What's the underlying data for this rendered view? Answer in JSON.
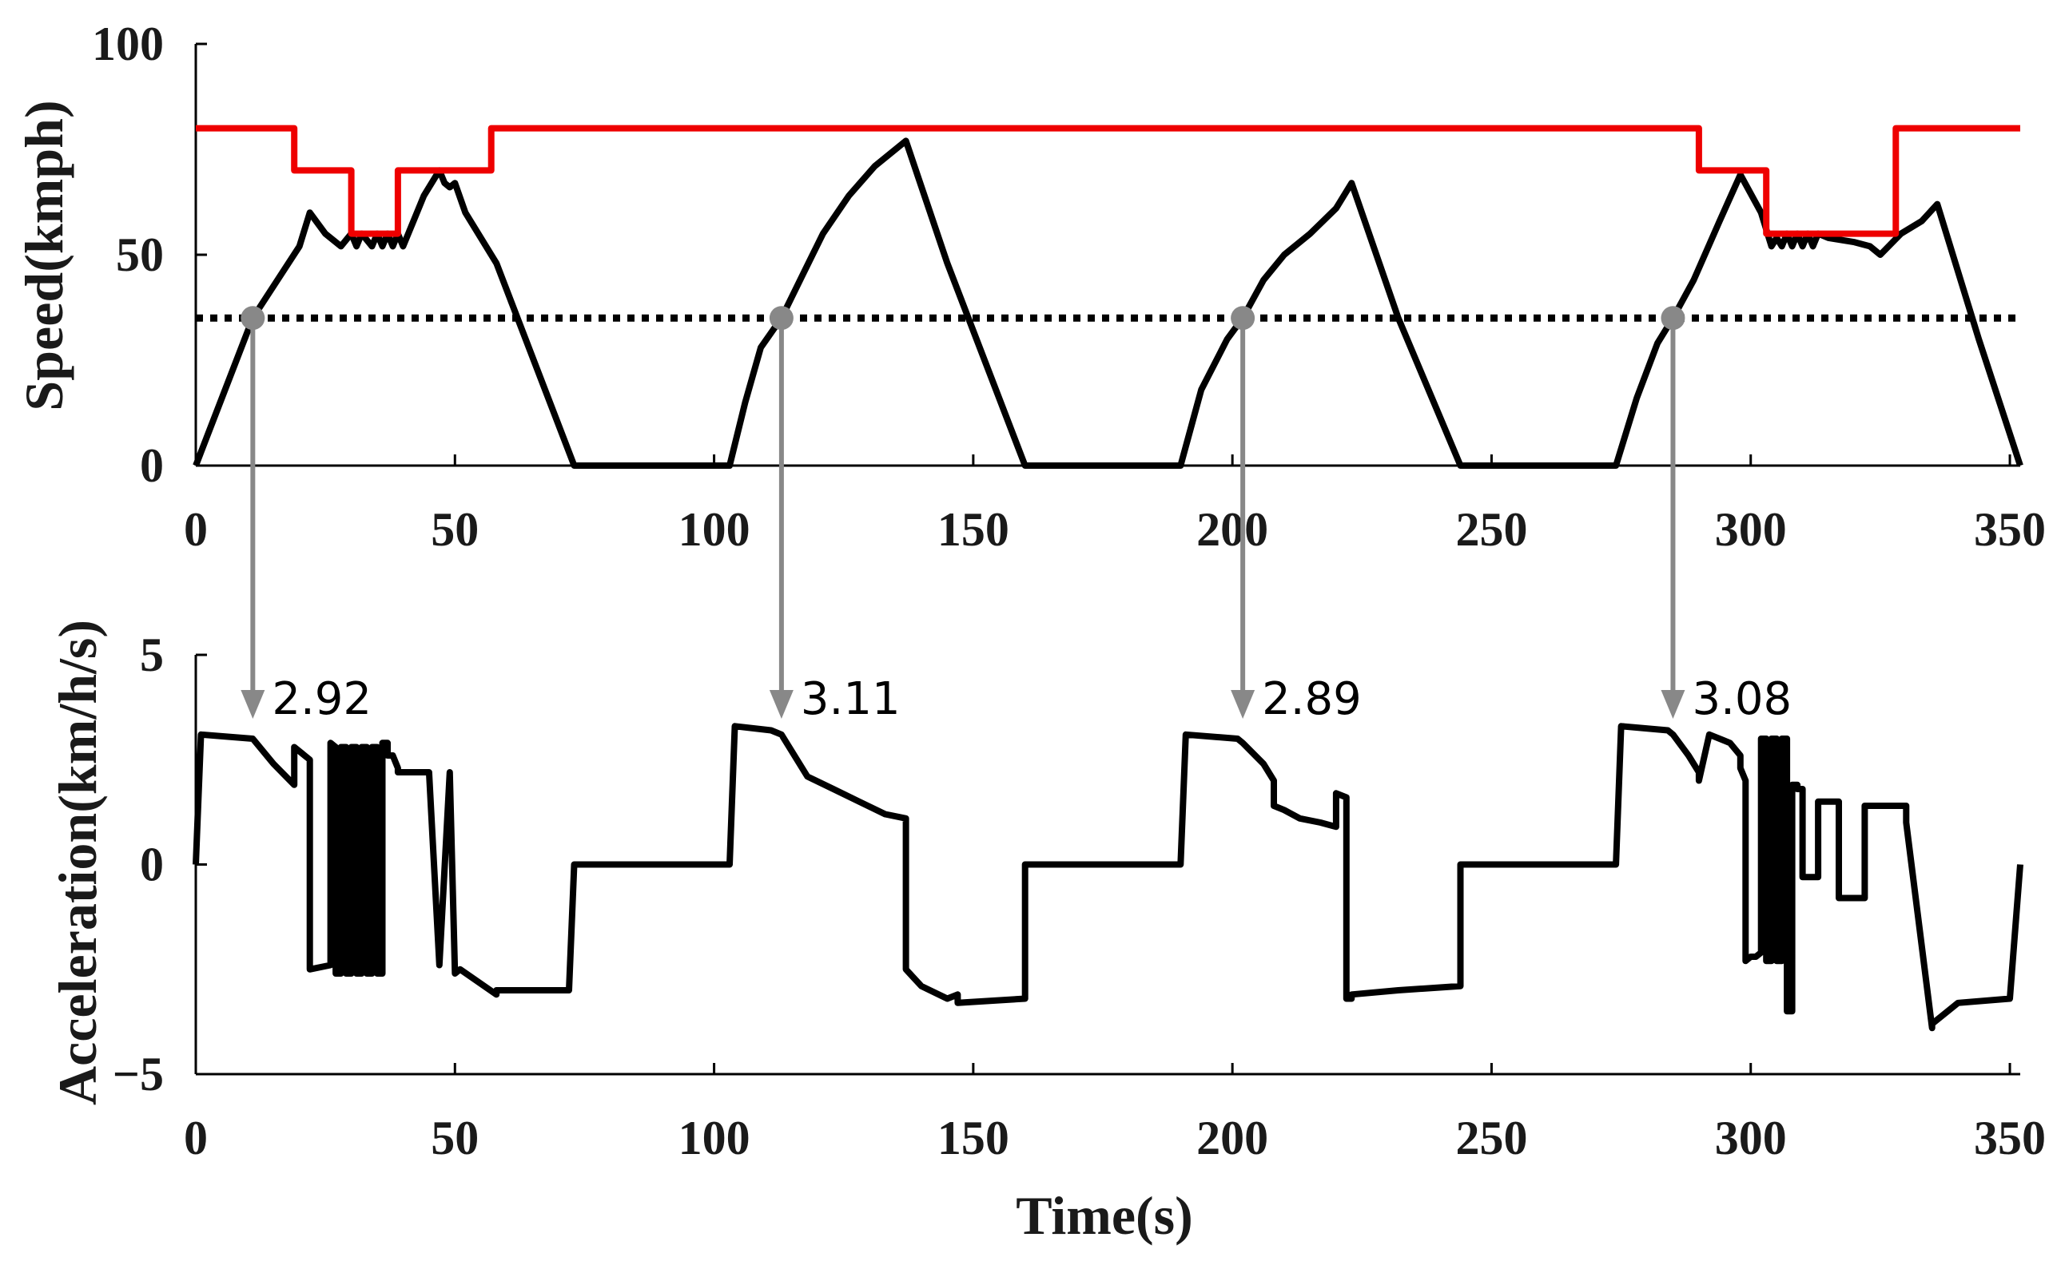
{
  "chart_data": [
    {
      "type": "line",
      "ylabel": "Speed(kmph)",
      "xlabel": "",
      "xlim": [
        0,
        352
      ],
      "ylim": [
        0,
        100
      ],
      "xticks": [
        "0",
        "50",
        "100",
        "150",
        "200",
        "250",
        "300",
        "350"
      ],
      "yticks": [
        "0",
        "50",
        "100"
      ],
      "grid": false,
      "threshold_speed": 35,
      "series": [
        {
          "color": "#000000",
          "style": "solid",
          "x": [
            0,
            11,
            20,
            22,
            25,
            28,
            30,
            31,
            32,
            34,
            35,
            36,
            37,
            38,
            39,
            40,
            42,
            44,
            47,
            48,
            49,
            50,
            52,
            58,
            73,
            103,
            106,
            109,
            113,
            117,
            121,
            126,
            131,
            137,
            145,
            160,
            190,
            194,
            199,
            202,
            206,
            210,
            215,
            220,
            223,
            232,
            244,
            274,
            278,
            282,
            285,
            289,
            294,
            298,
            302,
            304,
            305,
            306,
            307,
            308,
            309,
            310,
            311,
            312,
            313,
            315,
            320,
            323,
            325,
            329,
            333,
            336,
            344,
            352
          ],
          "y": [
            0,
            35,
            52,
            60,
            55,
            52,
            55,
            52,
            55,
            52,
            55,
            52,
            55,
            52,
            55,
            52,
            58,
            64,
            70,
            67,
            66,
            67,
            60,
            48,
            0,
            0,
            15,
            28,
            35,
            45,
            55,
            64,
            71,
            77,
            48,
            0,
            0,
            18,
            30,
            35,
            44,
            50,
            55,
            61,
            67,
            35,
            0,
            0,
            16,
            29,
            35,
            44,
            58,
            69,
            60,
            52,
            54,
            52,
            55,
            52,
            55,
            52,
            55,
            52,
            55,
            54,
            53,
            52,
            50,
            55,
            58,
            62,
            30,
            0
          ]
        },
        {
          "color": "#ee0000",
          "style": "step",
          "x": [
            0,
            19,
            19,
            30,
            30,
            39,
            39,
            57,
            57,
            290,
            290,
            303,
            303,
            328,
            328,
            352
          ],
          "y": [
            80,
            80,
            70,
            70,
            55,
            55,
            70,
            70,
            80,
            80,
            70,
            70,
            55,
            55,
            80,
            80
          ]
        }
      ]
    },
    {
      "type": "line",
      "ylabel": "Acceleration(km/h/s)",
      "xlabel": "Time(s)",
      "xlim": [
        0,
        352
      ],
      "ylim": [
        -5,
        5
      ],
      "xticks": [
        "0",
        "50",
        "100",
        "150",
        "200",
        "250",
        "300",
        "350"
      ],
      "yticks": [
        "−5",
        "0",
        "5"
      ],
      "grid": false,
      "series": [
        {
          "color": "#000000",
          "style": "solid",
          "x": [
            0,
            1,
            11,
            15,
            19,
            19,
            22,
            22,
            26,
            26,
            27,
            27,
            28,
            28,
            29,
            29,
            30,
            30,
            31,
            31,
            32,
            32,
            33,
            33,
            34,
            34,
            35,
            35,
            36,
            36,
            37,
            37,
            38,
            38,
            39,
            39,
            45,
            47,
            47,
            49,
            49,
            50,
            50,
            51,
            51,
            58,
            58,
            72,
            73,
            103,
            104,
            111,
            113,
            118,
            123,
            128,
            133,
            137,
            137,
            140,
            145,
            145,
            147,
            147,
            160,
            160,
            190,
            191,
            201,
            202,
            206,
            208,
            208,
            210,
            213,
            217,
            220,
            220,
            222,
            222,
            223,
            223,
            232,
            244,
            244,
            274,
            275,
            284,
            285,
            288,
            290,
            290,
            292,
            296,
            298,
            298,
            299,
            299,
            300,
            300,
            301,
            301,
            302,
            302,
            303,
            303,
            304,
            304,
            305,
            305,
            306,
            306,
            307,
            307,
            308,
            308,
            309,
            309,
            310,
            310,
            313,
            313,
            317,
            317,
            322,
            322,
            330,
            330,
            335,
            335,
            340,
            350,
            352
          ],
          "y": [
            0,
            3.1,
            3,
            2.4,
            1.9,
            2.8,
            2.5,
            -2.5,
            -2.4,
            2.9,
            2.8,
            -2.6,
            -2.6,
            2.8,
            2.8,
            -2.6,
            -2.6,
            2.8,
            2.8,
            -2.6,
            -2.6,
            2.8,
            2.8,
            -2.6,
            -2.6,
            2.8,
            2.8,
            -2.6,
            -2.6,
            2.9,
            2.9,
            2.6,
            2.6,
            2.6,
            2.3,
            2.2,
            2.2,
            -2.4,
            -2.4,
            2.2,
            2.2,
            -2.6,
            -2.6,
            -2.5,
            -2.5,
            -3.1,
            -3,
            -3,
            0,
            0,
            3.3,
            3.2,
            3.1,
            2.1,
            1.8,
            1.5,
            1.2,
            1.1,
            -2.5,
            -2.9,
            -3.2,
            -3.2,
            -3.1,
            -3.3,
            -3.2,
            0,
            0,
            3.1,
            3,
            2.9,
            2.4,
            2.0,
            1.4,
            1.3,
            1.1,
            1.0,
            0.9,
            1.7,
            1.6,
            -3.2,
            -3.2,
            -3.1,
            -3.0,
            -2.9,
            0,
            0,
            3.3,
            3.2,
            3.1,
            2.6,
            2.2,
            2.0,
            3.1,
            2.9,
            2.6,
            2.3,
            2.0,
            -2.3,
            -2.2,
            -2.2,
            -2.2,
            -2.2,
            -2.1,
            3.0,
            3.0,
            -2.3,
            -2.3,
            3.0,
            3.0,
            -2.3,
            -2.3,
            3.0,
            3.0,
            -3.5,
            -3.5,
            1.9,
            1.9,
            1.8,
            1.8,
            -0.3,
            -0.3,
            1.5,
            1.5,
            -0.8,
            -0.8,
            1.4,
            1.4,
            1.0,
            -3.9,
            -3.8,
            -3.3,
            -3.2,
            0
          ]
        }
      ]
    }
  ],
  "annotations": [
    {
      "label": "2.92",
      "x": 11
    },
    {
      "label": "3.11",
      "x": 113
    },
    {
      "label": "2.89",
      "x": 202
    },
    {
      "label": "3.08",
      "x": 285
    }
  ]
}
